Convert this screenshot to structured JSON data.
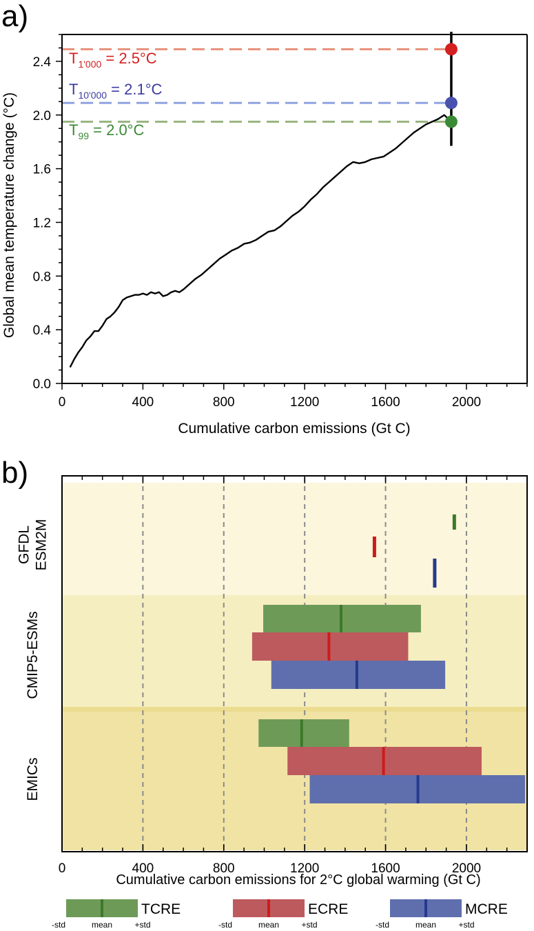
{
  "chart_data": [
    {
      "panel_label": "a)",
      "type": "line",
      "xlabel": "Cumulative carbon emissions (Gt C)",
      "ylabel": "Global mean temperature change (°C)",
      "xlim": [
        0,
        2300
      ],
      "ylim": [
        0,
        2.6
      ],
      "xticks": [
        0,
        400,
        800,
        1200,
        1600,
        2000
      ],
      "yticks": [
        0.0,
        0.4,
        0.8,
        1.2,
        1.6,
        2.0,
        2.4
      ],
      "ytick_labels": [
        "0.0",
        "0.4",
        "0.8",
        "1.2",
        "1.6",
        "2.0",
        "2.4"
      ],
      "series": [
        {
          "name": "warming trajectory",
          "color": "#000000",
          "x": [
            40,
            60,
            80,
            100,
            120,
            140,
            160,
            180,
            200,
            220,
            240,
            260,
            280,
            300,
            320,
            340,
            360,
            380,
            400,
            420,
            440,
            460,
            480,
            500,
            520,
            540,
            560,
            580,
            600,
            630,
            660,
            690,
            720,
            750,
            780,
            810,
            840,
            870,
            900,
            930,
            960,
            990,
            1020,
            1050,
            1080,
            1110,
            1140,
            1170,
            1200,
            1230,
            1260,
            1290,
            1320,
            1350,
            1380,
            1410,
            1440,
            1470,
            1500,
            1530,
            1560,
            1590,
            1620,
            1650,
            1680,
            1710,
            1740,
            1770,
            1800,
            1830,
            1860,
            1890,
            1925
          ],
          "y": [
            0.12,
            0.18,
            0.23,
            0.27,
            0.32,
            0.35,
            0.39,
            0.39,
            0.43,
            0.48,
            0.5,
            0.53,
            0.57,
            0.62,
            0.64,
            0.65,
            0.66,
            0.66,
            0.67,
            0.66,
            0.68,
            0.67,
            0.68,
            0.65,
            0.66,
            0.68,
            0.69,
            0.68,
            0.7,
            0.74,
            0.78,
            0.81,
            0.85,
            0.89,
            0.93,
            0.96,
            0.99,
            1.01,
            1.04,
            1.05,
            1.07,
            1.1,
            1.13,
            1.14,
            1.17,
            1.21,
            1.25,
            1.28,
            1.32,
            1.37,
            1.41,
            1.46,
            1.5,
            1.54,
            1.58,
            1.62,
            1.65,
            1.64,
            1.65,
            1.67,
            1.68,
            1.69,
            1.72,
            1.75,
            1.79,
            1.83,
            1.87,
            1.9,
            1.93,
            1.95,
            1.97,
            2.0,
            1.95
          ]
        }
      ],
      "error_bar": {
        "x": 1925,
        "ymin": 1.77,
        "ymax": 2.62,
        "color": "#000000"
      },
      "reference_lines": [
        {
          "name": "T1'000",
          "label_main": "T",
          "label_sub": "1'000",
          "label_value": " = 2.5°C",
          "y": 2.49,
          "line_color": "#e8907a",
          "point_color": "#d42020",
          "text_color": "#d42020"
        },
        {
          "name": "T10'000",
          "label_main": "T",
          "label_sub": "10'000",
          "label_value": " = 2.1°C",
          "y": 2.09,
          "line_color": "#8fa3e0",
          "point_color": "#4a52b0",
          "text_color": "#3c3ca0"
        },
        {
          "name": "T99",
          "label_main": "T",
          "label_sub": "99",
          "label_value": " = 2.0°C",
          "y": 1.95,
          "line_color": "#9ab582",
          "point_color": "#3a8a35",
          "text_color": "#3a8a35"
        }
      ]
    },
    {
      "panel_label": "b)",
      "type": "bar",
      "orientation": "horizontal",
      "xlabel": "Cumulative carbon emissions for 2°C global warming (Gt C)",
      "xlim": [
        0,
        2300
      ],
      "xticks": [
        0,
        400,
        800,
        1200,
        1600,
        2000
      ],
      "dashed_gridlines": [
        400,
        800,
        1200,
        1600,
        2000
      ],
      "groups": [
        {
          "name": "GFDL ESM2M",
          "label_lines": [
            "GFDL",
            "ESM2M"
          ],
          "background": "#fbf6dc",
          "bars": [
            {
              "metric": "TCRE",
              "mean": 1940
            },
            {
              "metric": "ECRE",
              "mean": 1545
            },
            {
              "metric": "MCRE",
              "mean": 1843
            }
          ]
        },
        {
          "name": "CMIP5-ESMs",
          "label_lines": [
            "CMIP5-ESMs"
          ],
          "background": "#f5eec0",
          "bars": [
            {
              "metric": "TCRE",
              "minus_std": 995,
              "mean": 1380,
              "plus_std": 1775
            },
            {
              "metric": "ECRE",
              "minus_std": 940,
              "mean": 1320,
              "plus_std": 1712
            },
            {
              "metric": "MCRE",
              "minus_std": 1035,
              "mean": 1458,
              "plus_std": 1895
            }
          ]
        },
        {
          "name": "EMICs",
          "label_lines": [
            "EMICs"
          ],
          "background": "#f0e3a4",
          "bars": [
            {
              "metric": "TCRE",
              "minus_std": 972,
              "mean": 1185,
              "plus_std": 1420
            },
            {
              "metric": "ECRE",
              "minus_std": 1115,
              "mean": 1590,
              "plus_std": 2075
            },
            {
              "metric": "MCRE",
              "minus_std": 1225,
              "mean": 1760,
              "plus_std": 2290
            }
          ]
        }
      ]
    }
  ],
  "legend": {
    "items": [
      {
        "name": "TCRE",
        "fill": "#6e9a58",
        "mark": "#3c7a2a"
      },
      {
        "name": "ECRE",
        "fill": "#bd5a5e",
        "mark": "#cc1c1c"
      },
      {
        "name": "MCRE",
        "fill": "#5f6fae",
        "mark": "#253a8e"
      }
    ],
    "sub_labels": [
      "-std",
      "mean",
      "+std"
    ]
  },
  "colors": {
    "TCRE": {
      "bar": "#6e9a58",
      "mean": "#3c7a2a"
    },
    "ECRE": {
      "bar": "#bd5a5e",
      "mean": "#cc1c1c"
    },
    "MCRE": {
      "bar": "#5f6fae",
      "mean": "#253a8e"
    }
  }
}
